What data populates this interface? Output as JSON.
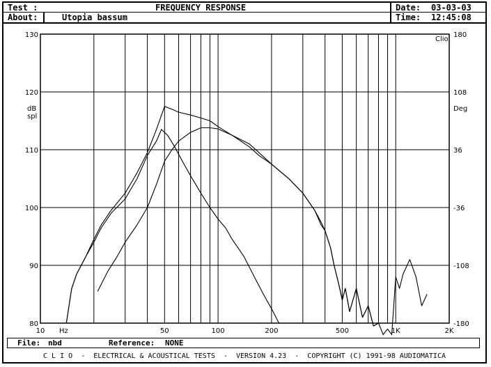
{
  "header": {
    "test_label": "Test :",
    "title": "FREQUENCY RESPONSE",
    "about_label": "About:",
    "about_value": "Utopia bassum",
    "date_label": "Date:",
    "date_value": "03-03-03",
    "time_label": "Time:",
    "time_value": "12:45:08"
  },
  "footer": {
    "file_label": "File:",
    "file_value": "nbd",
    "reference_label": "Reference:",
    "reference_value": "NONE"
  },
  "credits": "C L I O  -  ELECTRICAL & ACOUSTICAL TESTS  -  VERSION 4.23  -  COPYRIGHT (C) 1991-98 AUDIOMATICA",
  "chart_data": {
    "type": "line",
    "x_scale": "log",
    "xlim": [
      10,
      2000
    ],
    "ylim": [
      80,
      130
    ],
    "y2lim": [
      -180,
      180
    ],
    "ylabel": "dB\nspl",
    "y2label": "Deg",
    "brand_label": "Clio",
    "x_unit_label": "Hz",
    "x_ticks": [
      {
        "value": 10,
        "label": "10"
      },
      {
        "value": 50,
        "label": "50"
      },
      {
        "value": 100,
        "label": "100"
      },
      {
        "value": 200,
        "label": "200"
      },
      {
        "value": 500,
        "label": "500"
      },
      {
        "value": 1000,
        "label": "1K"
      },
      {
        "value": 2000,
        "label": "2K"
      }
    ],
    "y_ticks": [
      {
        "value": 130,
        "label": "130"
      },
      {
        "value": 120,
        "label": "120"
      },
      {
        "value": 110,
        "label": "110"
      },
      {
        "value": 100,
        "label": "100"
      },
      {
        "value": 90,
        "label": "90"
      },
      {
        "value": 80,
        "label": "80"
      }
    ],
    "y2_ticks": [
      {
        "value": 180,
        "label": "180"
      },
      {
        "value": 108,
        "label": "108"
      },
      {
        "value": 36,
        "label": "36"
      },
      {
        "value": -36,
        "label": "-36"
      },
      {
        "value": -108,
        "label": "-108"
      },
      {
        "value": -180,
        "label": "-180"
      }
    ],
    "grid": true,
    "series": [
      {
        "x": [
          21,
          24,
          27,
          30,
          35,
          40,
          45,
          50,
          55,
          60,
          70,
          80,
          90,
          100,
          120,
          150,
          170,
          200,
          250,
          300,
          350,
          380,
          400,
          430,
          450,
          480,
          500,
          520,
          550,
          600,
          650,
          700,
          750,
          800,
          850,
          900,
          950,
          1000,
          1050,
          1100,
          1200,
          1300,
          1400,
          1500
        ],
        "y": [
          85.5,
          89,
          91.5,
          94,
          97,
          100,
          104,
          108,
          110,
          111.5,
          113,
          113.8,
          113.8,
          113.6,
          112.5,
          110.5,
          109,
          107.5,
          105,
          102.5,
          99.5,
          97,
          96,
          93,
          90,
          86.5,
          84,
          86,
          82,
          86,
          81,
          83,
          79.5,
          80,
          78,
          79,
          78,
          88,
          86,
          88.5,
          91,
          88,
          83,
          85
        ]
      },
      {
        "x": [
          14,
          15,
          16,
          18,
          20,
          22,
          25,
          30,
          35,
          40,
          45,
          50,
          55,
          60,
          70,
          80,
          90,
          100,
          120,
          150,
          170,
          200,
          250,
          300,
          350,
          380,
          400,
          430,
          450,
          480,
          500,
          520,
          550,
          600,
          650,
          700,
          750,
          800
        ],
        "y": [
          80,
          86,
          88.5,
          91.5,
          94.5,
          97,
          99.5,
          102.5,
          106,
          109.5,
          113.5,
          117.5,
          117,
          116.5,
          116,
          115.5,
          115,
          114,
          112.5,
          111,
          109.5,
          107.5,
          105,
          102.5,
          99.5,
          97.5,
          96,
          93,
          90,
          86.5,
          84,
          86,
          82,
          86,
          81,
          83,
          79.5,
          80
        ]
      },
      {
        "x": [
          14,
          15,
          16,
          18,
          20,
          22,
          25,
          30,
          35,
          40,
          45,
          48,
          52,
          57,
          63,
          70,
          80,
          90,
          100,
          110,
          120,
          140,
          160,
          180,
          200,
          220
        ],
        "y": [
          80,
          86,
          88.5,
          91.5,
          94,
          96.5,
          99,
          101.5,
          105,
          109,
          111.5,
          113.5,
          112.5,
          110.5,
          108,
          105.5,
          102.5,
          100,
          98,
          96.5,
          94.5,
          91.5,
          88,
          85,
          82.5,
          80
        ]
      }
    ]
  }
}
